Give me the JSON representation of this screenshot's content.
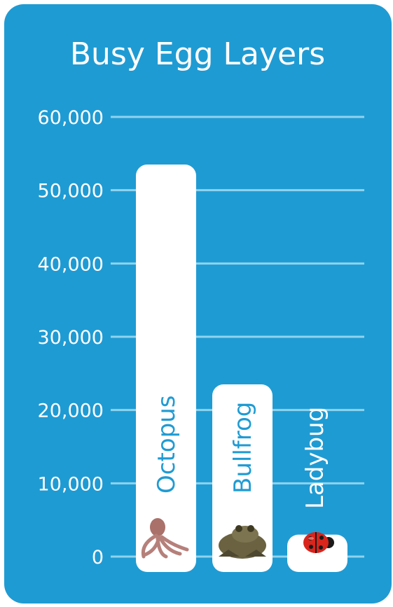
{
  "chart_data": {
    "type": "bar",
    "title": "Busy Egg Layers",
    "xlabel": "",
    "ylabel": "",
    "categories": [
      "Octopus",
      "Bullfrog",
      "Ladybug"
    ],
    "values": [
      53500,
      23500,
      3000
    ],
    "yticks": [
      "0",
      "10,000",
      "20,000",
      "30,000",
      "40,000",
      "50,000",
      "60,000"
    ],
    "ylim": [
      0,
      60000
    ],
    "grid": true,
    "legend": "none",
    "label_placement": "inside bar, rotated vertical",
    "colors": {
      "background": "#1f9bd3",
      "bar": "#ffffff",
      "bar_label": "#1f9bd3",
      "ladybug_label": "#ffffff",
      "text": "#ffffff",
      "gridline": "#8fd3ef"
    },
    "icons": [
      "octopus-icon",
      "bullfrog-icon",
      "ladybug-icon"
    ]
  }
}
